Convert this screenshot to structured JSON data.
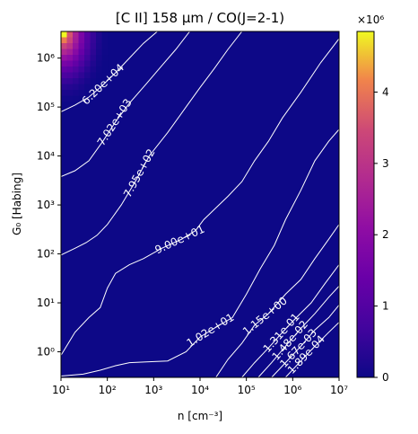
{
  "chart_data": {
    "type": "heatmap",
    "title": "[C II] 158 μm / CO(J=2-1)",
    "xlabel": "n [cm⁻³]",
    "ylabel": "G₀ [Habing]",
    "x_scale": "log",
    "y_scale": "log",
    "xlim": [
      10,
      10000000
    ],
    "ylim": [
      0.3,
      3500000
    ],
    "x_ticks": [
      {
        "value": 10,
        "label": "10¹"
      },
      {
        "value": 100,
        "label": "10²"
      },
      {
        "value": 1000,
        "label": "10³"
      },
      {
        "value": 10000,
        "label": "10⁴"
      },
      {
        "value": 100000,
        "label": "10⁵"
      },
      {
        "value": 1000000,
        "label": "10⁶"
      },
      {
        "value": 10000000,
        "label": "10⁷"
      }
    ],
    "y_ticks": [
      {
        "value": 1,
        "label": "10⁰"
      },
      {
        "value": 10,
        "label": "10¹"
      },
      {
        "value": 100,
        "label": "10²"
      },
      {
        "value": 1000,
        "label": "10³"
      },
      {
        "value": 10000,
        "label": "10⁴"
      },
      {
        "value": 100000,
        "label": "10⁵"
      },
      {
        "value": 1000000,
        "label": "10⁶"
      }
    ],
    "colorbar": {
      "colormap": "plasma",
      "min": 0,
      "max": 4850000,
      "multiplier_label": "×10⁶",
      "ticks": [
        {
          "value": 0,
          "label": "0"
        },
        {
          "value": 1000000,
          "label": "1"
        },
        {
          "value": 2000000,
          "label": "2"
        },
        {
          "value": 3000000,
          "label": "3"
        },
        {
          "value": 4000000,
          "label": "4"
        }
      ]
    },
    "hotspot": {
      "peak_value": 4850000,
      "location": "top-left",
      "n_max": 100,
      "g0_min": 100000
    },
    "contours": [
      {
        "level": 62000,
        "label": "6.20e+04",
        "points": [
          [
            10,
            80000
          ],
          [
            20,
            110000
          ],
          [
            40,
            160000
          ],
          [
            70,
            250000
          ],
          [
            150,
            500000
          ],
          [
            300,
            1000000
          ],
          [
            600,
            2000000
          ],
          [
            1200,
            3500000
          ]
        ]
      },
      {
        "level": 7020,
        "label": "7.02e+03",
        "points": [
          [
            10,
            3800
          ],
          [
            20,
            5000
          ],
          [
            40,
            8000
          ],
          [
            80,
            20000
          ],
          [
            150,
            50000
          ],
          [
            300,
            120000
          ],
          [
            700,
            300000
          ],
          [
            1500,
            700000
          ],
          [
            3000,
            1500000
          ],
          [
            6000,
            3500000
          ]
        ]
      },
      {
        "level": 795,
        "label": "7.95e+02",
        "points": [
          [
            10,
            95
          ],
          [
            20,
            130
          ],
          [
            35,
            170
          ],
          [
            60,
            240
          ],
          [
            100,
            400
          ],
          [
            200,
            1000
          ],
          [
            400,
            3000
          ],
          [
            800,
            10000
          ],
          [
            2000,
            30000
          ],
          [
            5000,
            100000
          ],
          [
            10000,
            250000
          ],
          [
            20000,
            600000
          ],
          [
            40000,
            1500000
          ],
          [
            80000,
            3500000
          ]
        ]
      },
      {
        "level": 90,
        "label": "9.00e+01",
        "points": [
          [
            10,
            0.85
          ],
          [
            20,
            2.5
          ],
          [
            40,
            5
          ],
          [
            70,
            8
          ],
          [
            100,
            20
          ],
          [
            150,
            40
          ],
          [
            300,
            60
          ],
          [
            600,
            80
          ],
          [
            1500,
            130
          ],
          [
            4000,
            200
          ],
          [
            8000,
            300
          ],
          [
            12000,
            500
          ],
          [
            20000,
            800
          ],
          [
            40000,
            1500
          ],
          [
            80000,
            3000
          ],
          [
            150000,
            8000
          ],
          [
            300000,
            20000
          ],
          [
            600000,
            60000
          ],
          [
            1500000,
            200000
          ],
          [
            4000000,
            800000
          ],
          [
            10000000,
            2500000
          ]
        ]
      },
      {
        "level": 10.2,
        "label": "1.02e+01",
        "points": [
          [
            10,
            0.32
          ],
          [
            30,
            0.35
          ],
          [
            70,
            0.42
          ],
          [
            150,
            0.52
          ],
          [
            300,
            0.6
          ],
          [
            700,
            0.62
          ],
          [
            2000,
            0.65
          ],
          [
            5000,
            1.0
          ],
          [
            10000,
            2.0
          ],
          [
            20000,
            3.0
          ],
          [
            50000,
            5.0
          ],
          [
            100000,
            15
          ],
          [
            200000,
            50
          ],
          [
            400000,
            150
          ],
          [
            700000,
            500
          ],
          [
            1500000,
            2000
          ],
          [
            3000000,
            8000
          ],
          [
            6000000,
            20000
          ],
          [
            10000000,
            35000
          ]
        ]
      },
      {
        "level": 1.15,
        "label": "1.15e+00",
        "points": [
          [
            22000,
            0.3
          ],
          [
            40000,
            0.7
          ],
          [
            80000,
            1.5
          ],
          [
            150000,
            3.5
          ],
          [
            300000,
            6.0
          ],
          [
            700000,
            15
          ],
          [
            1500000,
            30
          ],
          [
            3000000,
            80
          ],
          [
            6000000,
            200
          ],
          [
            10000000,
            400
          ]
        ]
      },
      {
        "level": 0.131,
        "label": "1.31e-01",
        "points": [
          [
            80000,
            0.3
          ],
          [
            150000,
            0.6
          ],
          [
            300000,
            1.2
          ],
          [
            600000,
            2.5
          ],
          [
            1200000,
            5
          ],
          [
            2500000,
            10
          ],
          [
            5000000,
            25
          ],
          [
            10000000,
            60
          ]
        ]
      },
      {
        "level": 0.0148,
        "label": "1.48e-02",
        "points": [
          [
            180000,
            0.3
          ],
          [
            350000,
            0.6
          ],
          [
            700000,
            1.3
          ],
          [
            1500000,
            3
          ],
          [
            3000000,
            6
          ],
          [
            6000000,
            13
          ],
          [
            10000000,
            22
          ]
        ]
      },
      {
        "level": 0.00167,
        "label": "1.67e-03",
        "points": [
          [
            350000,
            0.3
          ],
          [
            700000,
            0.6
          ],
          [
            1500000,
            1.3
          ],
          [
            3000000,
            2.8
          ],
          [
            6000000,
            5
          ],
          [
            10000000,
            9
          ]
        ]
      },
      {
        "level": 0.000189,
        "label": "1.89e-04",
        "points": [
          [
            700000,
            0.3
          ],
          [
            1500000,
            0.65
          ],
          [
            3000000,
            1.3
          ],
          [
            6000000,
            2.5
          ],
          [
            10000000,
            4
          ]
        ]
      }
    ]
  }
}
